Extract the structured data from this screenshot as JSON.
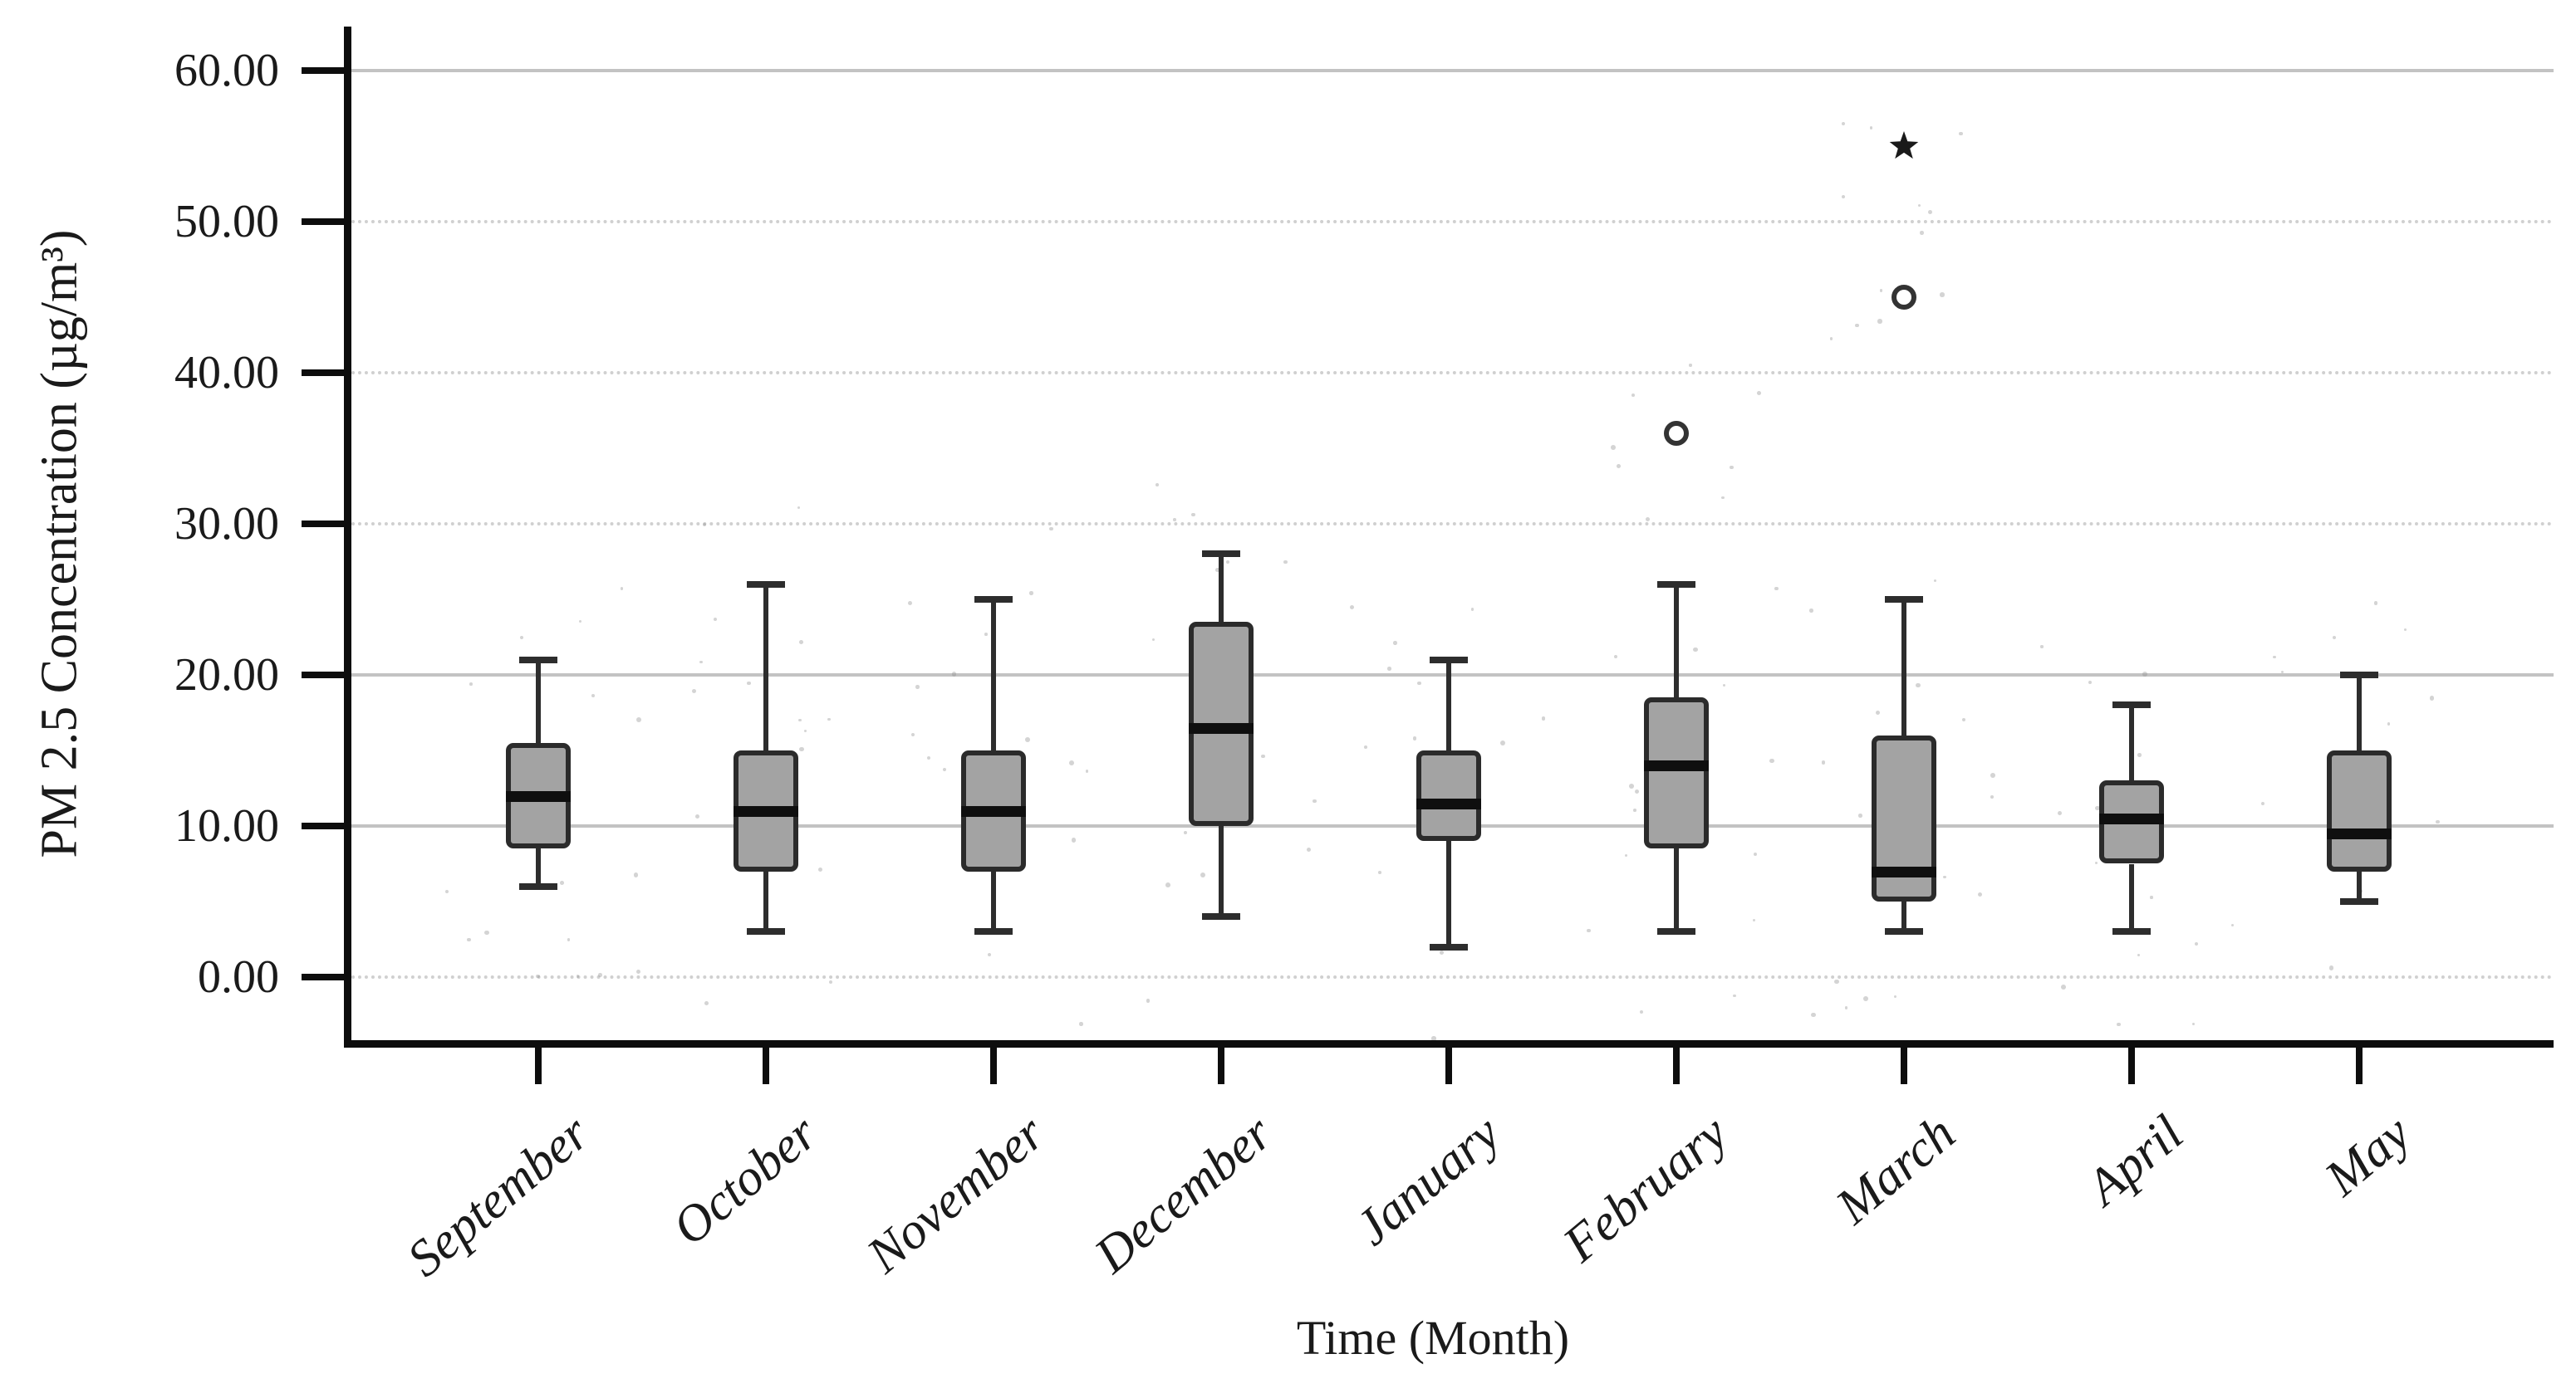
{
  "page": {
    "background": "#ffffff"
  },
  "chart_data": {
    "type": "boxplot",
    "title": "",
    "xlabel": "Time (Month)",
    "ylabel": "PM 2.5 Concentration (µg/m³)",
    "categories": [
      "September",
      "October",
      "November",
      "December",
      "January",
      "February",
      "March",
      "April",
      "May"
    ],
    "y_axis": {
      "min": 0,
      "max": 60,
      "tick_interval": 10,
      "tick_labels": [
        "0.00",
        "10.00",
        "20.00",
        "30.00",
        "40.00",
        "50.00",
        "60.00"
      ],
      "solid_gridlines": [
        10,
        20,
        60
      ],
      "dotted_gridlines": [
        0,
        30,
        40,
        50
      ],
      "grid": true
    },
    "legend": "none",
    "boxes": [
      {
        "category": "September",
        "whisker_low": 6,
        "q1": 8.5,
        "median": 12,
        "q3": 15.5,
        "whisker_high": 21,
        "outliers": []
      },
      {
        "category": "October",
        "whisker_low": 3,
        "q1": 7,
        "median": 11,
        "q3": 15,
        "whisker_high": 26,
        "outliers": []
      },
      {
        "category": "November",
        "whisker_low": 3,
        "q1": 7,
        "median": 11,
        "q3": 15,
        "whisker_high": 25,
        "outliers": []
      },
      {
        "category": "December",
        "whisker_low": 4,
        "q1": 10,
        "median": 16.5,
        "q3": 23.5,
        "whisker_high": 28,
        "outliers": []
      },
      {
        "category": "January",
        "whisker_low": 2,
        "q1": 9,
        "median": 11.5,
        "q3": 15,
        "whisker_high": 21,
        "outliers": []
      },
      {
        "category": "February",
        "whisker_low": 3,
        "q1": 8.5,
        "median": 14,
        "q3": 18.5,
        "whisker_high": 26,
        "outliers": [
          {
            "value": 36,
            "marker": "circle"
          }
        ]
      },
      {
        "category": "March",
        "whisker_low": 3,
        "q1": 5,
        "median": 7,
        "q3": 16,
        "whisker_high": 25,
        "outliers": [
          {
            "value": 45,
            "marker": "circle"
          },
          {
            "value": 55,
            "marker": "star"
          }
        ]
      },
      {
        "category": "April",
        "whisker_low": 3,
        "q1": 7.5,
        "median": 10.5,
        "q3": 13,
        "whisker_high": 18,
        "outliers": []
      },
      {
        "category": "May",
        "whisker_low": 5,
        "q1": 7,
        "median": 9.5,
        "q3": 15,
        "whisker_high": 20,
        "outliers": []
      }
    ]
  },
  "colors": {
    "box_fill": "#a3a3a3",
    "box_border": "#2b2b2b",
    "median": "#0f0f0f",
    "whisker": "#2d2d2d",
    "axis": "#0d0d0d",
    "gridline_solid": "#c3c3c3",
    "gridline_dotted": "#d0d0d0",
    "text": "#1a1a1a",
    "background": "#ffffff"
  }
}
